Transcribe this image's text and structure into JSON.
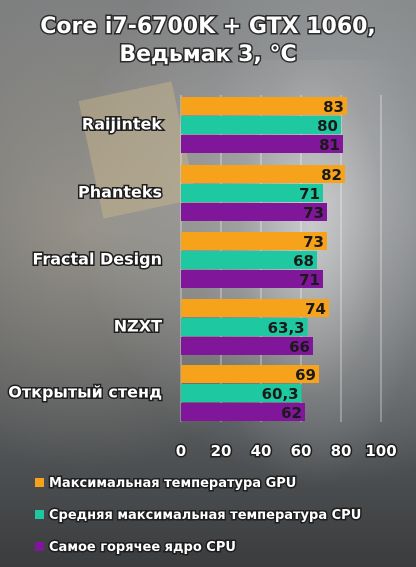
{
  "chart_data": {
    "type": "bar",
    "orientation": "horizontal",
    "title_lines": [
      "Core i7-6700K + GTX 1060,",
      "Ведьмак 3, °C"
    ],
    "categories": [
      "Raijintek",
      "Phanteks",
      "Fractal Design",
      "NZXT",
      "Открытый  стенд"
    ],
    "series": [
      {
        "name": "Максимальная температура GPU",
        "color": "#f7a21b",
        "values": [
          83,
          82,
          73,
          74,
          69
        ],
        "labels": [
          "83",
          "82",
          "73",
          "74",
          "69"
        ]
      },
      {
        "name": "Средняя максимальная температура CPU",
        "color": "#1ec8a0",
        "values": [
          80,
          71,
          68,
          63.3,
          60.3
        ],
        "labels": [
          "80",
          "71",
          "68",
          "63,3",
          "60,3"
        ]
      },
      {
        "name": "Самое горячее ядро CPU",
        "color": "#80169a",
        "values": [
          81,
          73,
          71,
          66,
          62
        ],
        "labels": [
          "81",
          "73",
          "71",
          "66",
          "62"
        ]
      }
    ],
    "xlim": [
      0,
      100
    ],
    "xticks": [
      0,
      20,
      40,
      60,
      80,
      100
    ],
    "xtick_labels": [
      "0",
      "20",
      "40",
      "60",
      "80",
      "100"
    ],
    "grid": true,
    "legend_position": "bottom"
  }
}
